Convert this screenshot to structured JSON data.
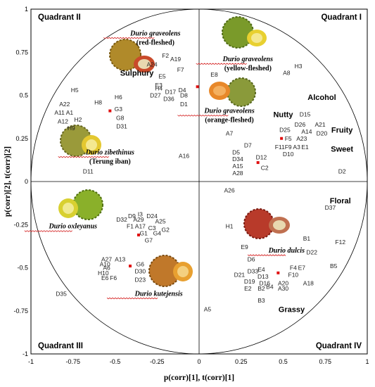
{
  "chart_data": {
    "type": "scatter",
    "xlabel": "p(corr)[1], t(corr)[1]",
    "ylabel": "p(corr)[2], t(corr)[2]",
    "xlim": [
      -1,
      1
    ],
    "ylim": [
      -1,
      1
    ],
    "x_ticks": [
      "-1",
      "-0.75",
      "-0.5",
      "-0.25",
      "0",
      "0.25",
      "0.5",
      "0.75",
      "1"
    ],
    "y_ticks": [
      "1",
      "0.75",
      "0.5",
      "0.25",
      "0",
      "-0.25",
      "-0.5",
      "-0.75",
      "-1"
    ],
    "quadrants": [
      "Quadrant I",
      "Quadrant II",
      "Quadrant III",
      "Quadrant IV"
    ],
    "attributes": [
      {
        "label": "Sulphury",
        "x": -0.37,
        "y": 0.63
      },
      {
        "label": "Alcohol",
        "x": 0.73,
        "y": 0.49
      },
      {
        "label": "Nutty",
        "x": 0.5,
        "y": 0.39
      },
      {
        "label": "Fruity",
        "x": 0.85,
        "y": 0.3
      },
      {
        "label": "Sweet",
        "x": 0.85,
        "y": 0.19
      },
      {
        "label": "Floral",
        "x": 0.84,
        "y": -0.11
      },
      {
        "label": "Grassy",
        "x": 0.55,
        "y": -0.74
      }
    ],
    "species": [
      {
        "name": "Durio graveolens",
        "sub": "(red-fleshed)",
        "x": -0.26,
        "y": 0.86
      },
      {
        "name": "Durio graveolens",
        "sub": "(yellow-fleshed)",
        "x": 0.29,
        "y": 0.71
      },
      {
        "name": "Durio graveolens",
        "sub": "(orange-fleshed)",
        "x": 0.18,
        "y": 0.41
      },
      {
        "name": "Durio zibethinus",
        "sub": "(Terung iban)",
        "x": -0.53,
        "y": 0.17
      },
      {
        "name": "Durio oxleyanus",
        "sub": "",
        "x": -0.75,
        "y": -0.26
      },
      {
        "name": "Durio dulcis",
        "sub": "",
        "x": 0.52,
        "y": -0.4
      },
      {
        "name": "Durio kutejensis",
        "sub": "",
        "x": -0.24,
        "y": -0.65
      }
    ],
    "centroids": [
      {
        "x": -0.53,
        "y": 0.41
      },
      {
        "x": -0.01,
        "y": 0.55
      },
      {
        "x": 0.35,
        "y": 0.11
      },
      {
        "x": 0.49,
        "y": 0.25
      },
      {
        "x": -0.36,
        "y": -0.31
      },
      {
        "x": -0.41,
        "y": -0.49
      },
      {
        "x": 0.47,
        "y": -0.53
      }
    ],
    "points": [
      {
        "label": "F2",
        "x": -0.2,
        "y": 0.73
      },
      {
        "label": "A19",
        "x": -0.14,
        "y": 0.71
      },
      {
        "label": "F7",
        "x": -0.11,
        "y": 0.65
      },
      {
        "label": "A24",
        "x": -0.28,
        "y": 0.68
      },
      {
        "label": "E5",
        "x": -0.22,
        "y": 0.61
      },
      {
        "label": "E3",
        "x": -0.24,
        "y": 0.56
      },
      {
        "label": "H4",
        "x": -0.24,
        "y": 0.54
      },
      {
        "label": "D17",
        "x": -0.17,
        "y": 0.52
      },
      {
        "label": "D4",
        "x": -0.1,
        "y": 0.53
      },
      {
        "label": "D27",
        "x": -0.26,
        "y": 0.5
      },
      {
        "label": "D36",
        "x": -0.18,
        "y": 0.48
      },
      {
        "label": "D8",
        "x": -0.09,
        "y": 0.5
      },
      {
        "label": "D1",
        "x": -0.09,
        "y": 0.45
      },
      {
        "label": "E8",
        "x": 0.09,
        "y": 0.62
      },
      {
        "label": "H5",
        "x": -0.74,
        "y": 0.53
      },
      {
        "label": "A22",
        "x": -0.8,
        "y": 0.45
      },
      {
        "label": "H8",
        "x": -0.6,
        "y": 0.46
      },
      {
        "label": "H6",
        "x": -0.48,
        "y": 0.49
      },
      {
        "label": "A11",
        "x": -0.83,
        "y": 0.4
      },
      {
        "label": "A1",
        "x": -0.77,
        "y": 0.4
      },
      {
        "label": "G3",
        "x": -0.48,
        "y": 0.42
      },
      {
        "label": "A12",
        "x": -0.81,
        "y": 0.35
      },
      {
        "label": "H2",
        "x": -0.72,
        "y": 0.36
      },
      {
        "label": "G8",
        "x": -0.47,
        "y": 0.37
      },
      {
        "label": "H9",
        "x": -0.76,
        "y": 0.31
      },
      {
        "label": "D31",
        "x": -0.46,
        "y": 0.32
      },
      {
        "label": "A16",
        "x": -0.09,
        "y": 0.15
      },
      {
        "label": "D11",
        "x": -0.66,
        "y": 0.06
      },
      {
        "label": "A8",
        "x": 0.52,
        "y": 0.63
      },
      {
        "label": "H3",
        "x": 0.59,
        "y": 0.67
      },
      {
        "label": "D15",
        "x": 0.63,
        "y": 0.39
      },
      {
        "label": "D26",
        "x": 0.6,
        "y": 0.33
      },
      {
        "label": "A21",
        "x": 0.72,
        "y": 0.33
      },
      {
        "label": "D25",
        "x": 0.51,
        "y": 0.3
      },
      {
        "label": "A14",
        "x": 0.64,
        "y": 0.29
      },
      {
        "label": "D20",
        "x": 0.73,
        "y": 0.28
      },
      {
        "label": "F5",
        "x": 0.53,
        "y": 0.25
      },
      {
        "label": "A23",
        "x": 0.61,
        "y": 0.25
      },
      {
        "label": "F11",
        "x": 0.48,
        "y": 0.2
      },
      {
        "label": "F9",
        "x": 0.53,
        "y": 0.2
      },
      {
        "label": "A3",
        "x": 0.58,
        "y": 0.2
      },
      {
        "label": "E1",
        "x": 0.63,
        "y": 0.2
      },
      {
        "label": "D10",
        "x": 0.53,
        "y": 0.16
      },
      {
        "label": "A7",
        "x": 0.18,
        "y": 0.28
      },
      {
        "label": "D7",
        "x": 0.29,
        "y": 0.21
      },
      {
        "label": "D5",
        "x": 0.22,
        "y": 0.17
      },
      {
        "label": "D12",
        "x": 0.37,
        "y": 0.14
      },
      {
        "label": "D34",
        "x": 0.23,
        "y": 0.13
      },
      {
        "label": "A15",
        "x": 0.23,
        "y": 0.09
      },
      {
        "label": "C2",
        "x": 0.39,
        "y": 0.08
      },
      {
        "label": "A28",
        "x": 0.23,
        "y": 0.05
      },
      {
        "label": "D2",
        "x": 0.85,
        "y": 0.06
      },
      {
        "label": "A26",
        "x": 0.18,
        "y": -0.05
      },
      {
        "label": "D37",
        "x": 0.78,
        "y": -0.15
      },
      {
        "label": "H1",
        "x": 0.18,
        "y": -0.26
      },
      {
        "label": "B1",
        "x": 0.64,
        "y": -0.33
      },
      {
        "label": "F12",
        "x": 0.84,
        "y": -0.35
      },
      {
        "label": "D22",
        "x": 0.67,
        "y": -0.41
      },
      {
        "label": "E9",
        "x": 0.27,
        "y": -0.38
      },
      {
        "label": "D6",
        "x": 0.31,
        "y": -0.45
      },
      {
        "label": "B5",
        "x": 0.8,
        "y": -0.49
      },
      {
        "label": "F4",
        "x": 0.56,
        "y": -0.5
      },
      {
        "label": "E7",
        "x": 0.61,
        "y": -0.5
      },
      {
        "label": "D33",
        "x": 0.32,
        "y": -0.52
      },
      {
        "label": "E4",
        "x": 0.37,
        "y": -0.51
      },
      {
        "label": "F10",
        "x": 0.56,
        "y": -0.54
      },
      {
        "label": "D21",
        "x": 0.24,
        "y": -0.54
      },
      {
        "label": "D13",
        "x": 0.38,
        "y": -0.55
      },
      {
        "label": "D19",
        "x": 0.3,
        "y": -0.58
      },
      {
        "label": "D16",
        "x": 0.39,
        "y": -0.59
      },
      {
        "label": "A20",
        "x": 0.5,
        "y": -0.59
      },
      {
        "label": "A18",
        "x": 0.65,
        "y": -0.59
      },
      {
        "label": "E2",
        "x": 0.29,
        "y": -0.62
      },
      {
        "label": "B2",
        "x": 0.37,
        "y": -0.62
      },
      {
        "label": "B4",
        "x": 0.42,
        "y": -0.61
      },
      {
        "label": "A30",
        "x": 0.5,
        "y": -0.62
      },
      {
        "label": "B3",
        "x": 0.37,
        "y": -0.69
      },
      {
        "label": "A5",
        "x": 0.05,
        "y": -0.74
      },
      {
        "label": "D9",
        "x": -0.4,
        "y": -0.2
      },
      {
        "label": "I3",
        "x": -0.35,
        "y": -0.19
      },
      {
        "label": "D24",
        "x": -0.28,
        "y": -0.2
      },
      {
        "label": "D32",
        "x": -0.46,
        "y": -0.22
      },
      {
        "label": "A29",
        "x": -0.36,
        "y": -0.22
      },
      {
        "label": "A25",
        "x": -0.23,
        "y": -0.23
      },
      {
        "label": "F1",
        "x": -0.41,
        "y": -0.26
      },
      {
        "label": "A17",
        "x": -0.35,
        "y": -0.26
      },
      {
        "label": "C3",
        "x": -0.28,
        "y": -0.27
      },
      {
        "label": "G2",
        "x": -0.2,
        "y": -0.28
      },
      {
        "label": "G1",
        "x": -0.33,
        "y": -0.3
      },
      {
        "label": "G4",
        "x": -0.25,
        "y": -0.3
      },
      {
        "label": "G7",
        "x": -0.3,
        "y": -0.34
      },
      {
        "label": "A27",
        "x": -0.55,
        "y": -0.45
      },
      {
        "label": "A13",
        "x": -0.47,
        "y": -0.45
      },
      {
        "label": "A10",
        "x": -0.56,
        "y": -0.48
      },
      {
        "label": "G6",
        "x": -0.35,
        "y": -0.48
      },
      {
        "label": "A6",
        "x": -0.55,
        "y": -0.5
      },
      {
        "label": "H10",
        "x": -0.57,
        "y": -0.53
      },
      {
        "label": "D30",
        "x": -0.35,
        "y": -0.52
      },
      {
        "label": "E6",
        "x": -0.56,
        "y": -0.56
      },
      {
        "label": "F6",
        "x": -0.51,
        "y": -0.56
      },
      {
        "label": "D23",
        "x": -0.35,
        "y": -0.57
      },
      {
        "label": "D35",
        "x": -0.82,
        "y": -0.65
      }
    ]
  }
}
